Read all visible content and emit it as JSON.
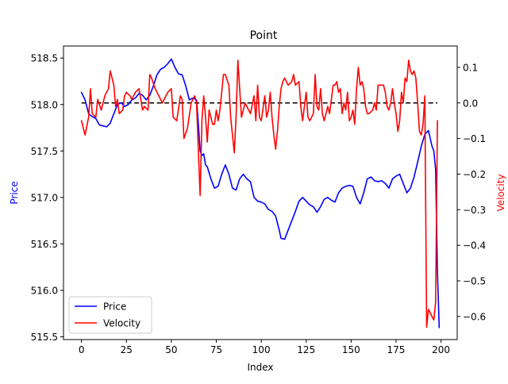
{
  "chart_data": {
    "type": "line",
    "title": "Point",
    "xlabel": "Index",
    "ylabel_left": "Price",
    "ylabel_right": "Velocity",
    "xlim": [
      -10,
      209
    ],
    "ylim_left": [
      515.47,
      518.63
    ],
    "ylim_right": [
      -0.665,
      0.16
    ],
    "x_ticks": [
      0,
      25,
      50,
      75,
      100,
      125,
      150,
      175,
      200
    ],
    "y_left_ticks": [
      515.5,
      516.0,
      516.5,
      517.0,
      517.5,
      518.0,
      518.5
    ],
    "y_left_tick_labels": [
      "515.5",
      "516.0",
      "516.5",
      "517.0",
      "517.5",
      "518.0",
      "518.5"
    ],
    "y_right_ticks": [
      -0.6,
      -0.5,
      -0.4,
      -0.3,
      -0.2,
      -0.1,
      0.0,
      0.1
    ],
    "y_right_tick_labels": [
      "−0.6",
      "−0.5",
      "−0.4",
      "−0.3",
      "−0.2",
      "−0.1",
      "0.0",
      "0.1"
    ],
    "grid": false,
    "legend_position": "lower-left",
    "colors": {
      "price": "#0000ff",
      "velocity": "#ff0000",
      "zero_line": "#000000",
      "ylabel_left": "#0000ff",
      "ylabel_right": "#ff0000"
    },
    "series": [
      {
        "name": "Price",
        "axis": "left",
        "points": [
          [
            0,
            518.13
          ],
          [
            2,
            518.05
          ],
          [
            4,
            517.9
          ],
          [
            6,
            517.87
          ],
          [
            8,
            517.85
          ],
          [
            10,
            517.78
          ],
          [
            12,
            517.77
          ],
          [
            14,
            517.76
          ],
          [
            16,
            517.8
          ],
          [
            18,
            517.9
          ],
          [
            20,
            518.0
          ],
          [
            22,
            518.02
          ],
          [
            24,
            517.98
          ],
          [
            26,
            518.0
          ],
          [
            28,
            518.05
          ],
          [
            30,
            518.07
          ],
          [
            32,
            518.12
          ],
          [
            34,
            518.1
          ],
          [
            36,
            518.05
          ],
          [
            38,
            518.1
          ],
          [
            40,
            518.2
          ],
          [
            42,
            518.32
          ],
          [
            44,
            518.38
          ],
          [
            46,
            518.4
          ],
          [
            48,
            518.44
          ],
          [
            50,
            518.49
          ],
          [
            52,
            518.4
          ],
          [
            54,
            518.33
          ],
          [
            56,
            518.32
          ],
          [
            58,
            518.2
          ],
          [
            60,
            518.05
          ],
          [
            62,
            518.07
          ],
          [
            64,
            518.05
          ],
          [
            65,
            517.8
          ],
          [
            66,
            517.5
          ],
          [
            67,
            517.45
          ],
          [
            68,
            517.47
          ],
          [
            69,
            517.35
          ],
          [
            70,
            517.33
          ],
          [
            72,
            517.2
          ],
          [
            74,
            517.1
          ],
          [
            76,
            517.12
          ],
          [
            78,
            517.25
          ],
          [
            80,
            517.35
          ],
          [
            82,
            517.25
          ],
          [
            84,
            517.1
          ],
          [
            86,
            517.08
          ],
          [
            88,
            517.2
          ],
          [
            90,
            517.25
          ],
          [
            92,
            517.2
          ],
          [
            94,
            517.17
          ],
          [
            96,
            517.0
          ],
          [
            98,
            516.96
          ],
          [
            100,
            516.95
          ],
          [
            102,
            516.93
          ],
          [
            104,
            516.87
          ],
          [
            106,
            516.85
          ],
          [
            108,
            516.8
          ],
          [
            110,
            516.65
          ],
          [
            111,
            516.56
          ],
          [
            113,
            516.55
          ],
          [
            115,
            516.65
          ],
          [
            117,
            516.75
          ],
          [
            119,
            516.85
          ],
          [
            121,
            516.96
          ],
          [
            123,
            517.0
          ],
          [
            125,
            516.96
          ],
          [
            127,
            516.92
          ],
          [
            129,
            516.9
          ],
          [
            131,
            516.84
          ],
          [
            133,
            516.9
          ],
          [
            135,
            516.98
          ],
          [
            137,
            517.0
          ],
          [
            139,
            516.97
          ],
          [
            141,
            516.95
          ],
          [
            143,
            517.05
          ],
          [
            145,
            517.1
          ],
          [
            147,
            517.12
          ],
          [
            149,
            517.13
          ],
          [
            151,
            517.12
          ],
          [
            153,
            517.0
          ],
          [
            155,
            516.93
          ],
          [
            157,
            517.05
          ],
          [
            159,
            517.2
          ],
          [
            161,
            517.22
          ],
          [
            163,
            517.18
          ],
          [
            165,
            517.17
          ],
          [
            167,
            517.18
          ],
          [
            169,
            517.15
          ],
          [
            171,
            517.1
          ],
          [
            173,
            517.2
          ],
          [
            175,
            517.23
          ],
          [
            177,
            517.25
          ],
          [
            179,
            517.15
          ],
          [
            181,
            517.05
          ],
          [
            183,
            517.1
          ],
          [
            185,
            517.22
          ],
          [
            187,
            517.38
          ],
          [
            189,
            517.55
          ],
          [
            191,
            517.68
          ],
          [
            193,
            517.72
          ],
          [
            195,
            517.55
          ],
          [
            196,
            517.5
          ],
          [
            197,
            517.3
          ],
          [
            198,
            516.2
          ],
          [
            199,
            515.6
          ]
        ]
      },
      {
        "name": "Velocity",
        "axis": "right",
        "points": [
          [
            0,
            -0.05
          ],
          [
            2,
            -0.09
          ],
          [
            4,
            -0.04
          ],
          [
            5,
            0.04
          ],
          [
            6,
            -0.03
          ],
          [
            8,
            -0.04
          ],
          [
            9,
            0.01
          ],
          [
            11,
            -0.02
          ],
          [
            13,
            0.02
          ],
          [
            15,
            0.04
          ],
          [
            16,
            0.09
          ],
          [
            18,
            0.05
          ],
          [
            19,
            -0.01
          ],
          [
            20,
            0.01
          ],
          [
            21,
            -0.03
          ],
          [
            23,
            -0.02
          ],
          [
            24,
            0.02
          ],
          [
            25,
            0.03
          ],
          [
            27,
            0.02
          ],
          [
            28,
            0.01
          ],
          [
            30,
            0.03
          ],
          [
            32,
            0.04
          ],
          [
            34,
            -0.02
          ],
          [
            35,
            -0.01
          ],
          [
            37,
            -0.02
          ],
          [
            38,
            0.08
          ],
          [
            39,
            0.07
          ],
          [
            41,
            0.04
          ],
          [
            43,
            0.02
          ],
          [
            45,
            0.0
          ],
          [
            47,
            0.02
          ],
          [
            48,
            0.03
          ],
          [
            50,
            0.04
          ],
          [
            51,
            -0.04
          ],
          [
            53,
            -0.05
          ],
          [
            55,
            0.02
          ],
          [
            56,
            0.01
          ],
          [
            57,
            -0.1
          ],
          [
            59,
            -0.07
          ],
          [
            61,
            0.0
          ],
          [
            63,
            0.02
          ],
          [
            64,
            0.0
          ],
          [
            66,
            -0.26
          ],
          [
            67,
            -0.05
          ],
          [
            68,
            0.02
          ],
          [
            69,
            -0.04
          ],
          [
            70,
            -0.11
          ],
          [
            71,
            -0.02
          ],
          [
            73,
            -0.06
          ],
          [
            74,
            -0.06
          ],
          [
            75,
            -0.02
          ],
          [
            76,
            -0.05
          ],
          [
            77,
            -0.02
          ],
          [
            79,
            0.08
          ],
          [
            80,
            0.08
          ],
          [
            82,
            0.05
          ],
          [
            83,
            -0.04
          ],
          [
            85,
            -0.14
          ],
          [
            86,
            -0.04
          ],
          [
            87,
            0.12
          ],
          [
            88,
            0.04
          ],
          [
            89,
            -0.04
          ],
          [
            91,
            0.0
          ],
          [
            93,
            -0.02
          ],
          [
            94,
            -0.03
          ],
          [
            96,
            0.02
          ],
          [
            97,
            -0.05
          ],
          [
            98,
            0.05
          ],
          [
            99,
            -0.04
          ],
          [
            100,
            -0.05
          ],
          [
            102,
            0.02
          ],
          [
            103,
            -0.04
          ],
          [
            104,
            -0.02
          ],
          [
            105,
            0.03
          ],
          [
            106,
            -0.04
          ],
          [
            107,
            -0.09
          ],
          [
            108,
            -0.13
          ],
          [
            109,
            -0.08
          ],
          [
            110,
            -0.01
          ],
          [
            111,
            0.04
          ],
          [
            112,
            0.06
          ],
          [
            113,
            0.07
          ],
          [
            115,
            0.05
          ],
          [
            117,
            0.06
          ],
          [
            118,
            0.08
          ],
          [
            119,
            0.05
          ],
          [
            121,
            0.06
          ],
          [
            122,
            -0.01
          ],
          [
            123,
            -0.05
          ],
          [
            125,
            0.03
          ],
          [
            126,
            -0.04
          ],
          [
            127,
            -0.05
          ],
          [
            129,
            -0.03
          ],
          [
            130,
            0.08
          ],
          [
            131,
            -0.01
          ],
          [
            132,
            -0.02
          ],
          [
            133,
            0.04
          ],
          [
            134,
            -0.03
          ],
          [
            135,
            -0.05
          ],
          [
            137,
            -0.01
          ],
          [
            138,
            -0.03
          ],
          [
            140,
            0.05
          ],
          [
            141,
            0.05
          ],
          [
            142,
            0.06
          ],
          [
            143,
            0.03
          ],
          [
            144,
            0.04
          ],
          [
            145,
            -0.03
          ],
          [
            146,
            0.0
          ],
          [
            147,
            -0.02
          ],
          [
            148,
            0.03
          ],
          [
            149,
            -0.05
          ],
          [
            150,
            -0.04
          ],
          [
            151,
            -0.02
          ],
          [
            152,
            -0.06
          ],
          [
            153,
            0.04
          ],
          [
            154,
            0.1
          ],
          [
            155,
            0.05
          ],
          [
            156,
            0.06
          ],
          [
            157,
            0.04
          ],
          [
            158,
            -0.01
          ],
          [
            159,
            -0.03
          ],
          [
            160,
            -0.03
          ],
          [
            162,
            -0.02
          ],
          [
            163,
            0.0
          ],
          [
            164,
            -0.02
          ],
          [
            165,
            0.05
          ],
          [
            166,
            0.05
          ],
          [
            168,
            0.05
          ],
          [
            169,
            0.03
          ],
          [
            170,
            -0.01
          ],
          [
            171,
            -0.02
          ],
          [
            172,
            0.0
          ],
          [
            173,
            0.04
          ],
          [
            174,
            0.0
          ],
          [
            175,
            -0.03
          ],
          [
            176,
            -0.08
          ],
          [
            177,
            -0.05
          ],
          [
            178,
            0.03
          ],
          [
            179,
            0.0
          ],
          [
            180,
            0.07
          ],
          [
            181,
            0.06
          ],
          [
            182,
            0.12
          ],
          [
            183,
            0.09
          ],
          [
            184,
            0.08
          ],
          [
            185,
            0.09
          ],
          [
            186,
            0.07
          ],
          [
            187,
            0.0
          ],
          [
            188,
            -0.08
          ],
          [
            189,
            -0.09
          ],
          [
            190,
            -0.06
          ],
          [
            191,
            0.02
          ],
          [
            192,
            -0.63
          ],
          [
            193,
            -0.58
          ],
          [
            194,
            -0.59
          ],
          [
            196,
            -0.61
          ],
          [
            197,
            -0.56
          ],
          [
            198,
            -0.05
          ]
        ]
      }
    ],
    "reference_line": {
      "axis": "right",
      "y": 0.0,
      "x_range": [
        0,
        198
      ],
      "style": "dashed"
    }
  }
}
